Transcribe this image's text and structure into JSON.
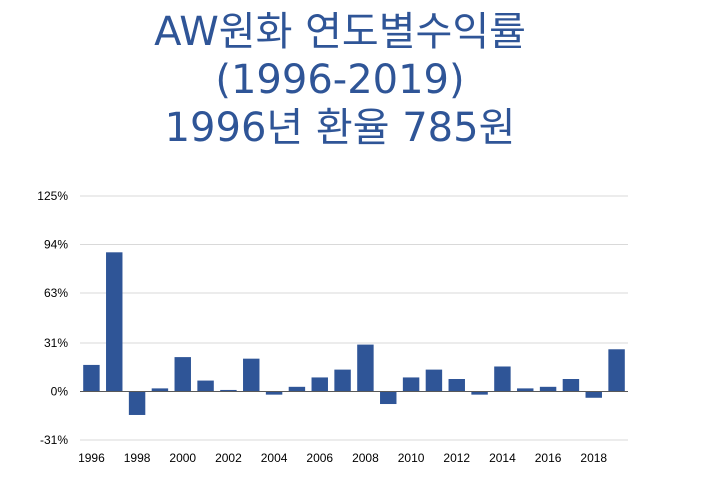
{
  "title": {
    "line1": "AW원화 연도별수익률",
    "line2": "(1996-2019)",
    "line3": "1996년 환율 785원"
  },
  "colors": {
    "title": "#2f5597",
    "bar": "#2f5597",
    "grid": "#d9d9d9"
  },
  "chart_data": {
    "type": "bar",
    "x": [
      1996,
      1997,
      1998,
      1999,
      2000,
      2001,
      2002,
      2003,
      2004,
      2005,
      2006,
      2007,
      2008,
      2009,
      2010,
      2011,
      2012,
      2013,
      2014,
      2015,
      2016,
      2017,
      2018,
      2019
    ],
    "values": [
      17,
      89,
      -15,
      2,
      22,
      7,
      1,
      21,
      -2,
      3,
      9,
      14,
      30,
      -8,
      9,
      14,
      8,
      -2,
      16,
      2,
      3,
      8,
      -4,
      27
    ],
    "x_tick_labels": [
      "1996",
      "1998",
      "2000",
      "2002",
      "2004",
      "2006",
      "2008",
      "2010",
      "2012",
      "2014",
      "2016",
      "2018"
    ],
    "y_ticks": [
      -31,
      0,
      31,
      63,
      94,
      125
    ],
    "y_tick_labels": [
      "-31%",
      "0%",
      "31%",
      "63%",
      "94%",
      "125%"
    ],
    "ylim": [
      -31,
      125
    ],
    "grid": true,
    "legend": "none",
    "title": "",
    "xlabel": "",
    "ylabel": ""
  }
}
